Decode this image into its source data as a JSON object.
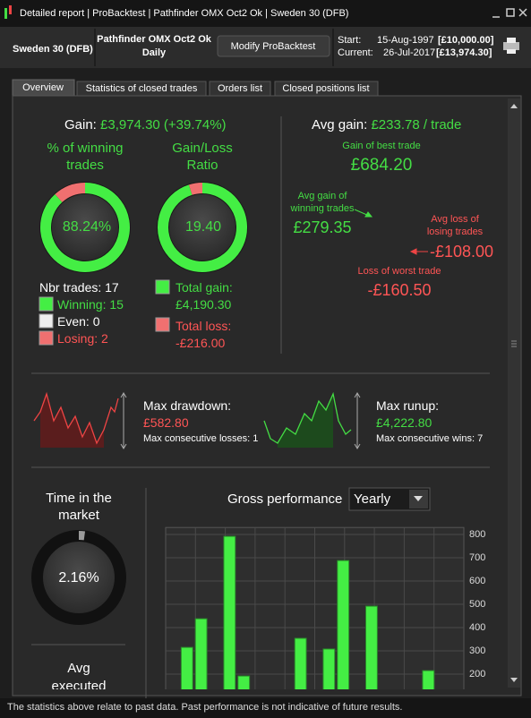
{
  "window": {
    "title": "Detailed report | ProBacktest | Pathfinder OMX Oct2 Ok | Sweden 30 (DFB)"
  },
  "header": {
    "instrument": "Sweden 30 (DFB)",
    "system": "Pathfinder OMX Oct2 Ok",
    "period": "Daily",
    "button": "Modify ProBacktest",
    "start_label": "Start:",
    "start_date": "15-Aug-1997",
    "start_capital": "[£10,000.00]",
    "current_label": "Current:",
    "current_date": "26-Jul-2017",
    "current_capital": "[£13,974.30]"
  },
  "tabs": [
    "Overview",
    "Statistics of closed trades",
    "Orders list",
    "Closed positions list"
  ],
  "gain": {
    "label": "Gain:",
    "value": "£3,974.30 (+39.74%)"
  },
  "winning": {
    "title": "% of winning trades",
    "pct": {
      "value": 88.24,
      "label": "88.24%"
    }
  },
  "ratio": {
    "title": "Gain/Loss Ratio",
    "value": {
      "value": 19.4,
      "label": "19.40"
    }
  },
  "trades": {
    "total_label": "Nbr trades:",
    "total": 17,
    "winning_label": "Winning:",
    "winning": 15,
    "even_label": "Even:",
    "even": 0,
    "losing_label": "Losing:",
    "losing": 2
  },
  "totals": {
    "gain_label": "Total gain:",
    "gain": {
      "value": 4190.3,
      "label": "£4,190.30"
    },
    "loss_label": "Total loss:",
    "loss": {
      "value": -216,
      "label": "-£216.00"
    }
  },
  "avg_gain": {
    "label": "Avg gain:",
    "value": "£233.78 / trade",
    "best_label": "Gain of best trade",
    "best": {
      "value": 684.2,
      "label": "£684.20"
    },
    "avg_win_label": "Avg gain of winning trades",
    "avg_win": {
      "value": 279.35,
      "label": "£279.35"
    },
    "avg_loss_label": "Avg loss of losing trades",
    "avg_loss": {
      "value": -108,
      "label": "-£108.00"
    },
    "worst_label": "Loss of worst trade",
    "worst": {
      "value": -160.5,
      "label": "-£160.50"
    }
  },
  "drawdown": {
    "label": "Max drawdown:",
    "value": "£582.80",
    "consecutive": "Max consecutive losses: 1"
  },
  "runup": {
    "label": "Max runup:",
    "value": "£4,222.80",
    "consecutive": "Max consecutive wins: 7"
  },
  "time_in_market": {
    "title": "Time in the market",
    "pct": {
      "value": 2.16,
      "label": "2.16%"
    }
  },
  "avg_executed": {
    "title": "Avg executed"
  },
  "chart_data": {
    "type": "bar",
    "title": "Gross performance",
    "period": "Yearly",
    "categories": [
      null,
      null,
      null,
      null,
      null,
      null,
      null,
      null,
      null,
      null,
      null,
      null,
      null,
      null,
      null,
      null,
      null,
      null,
      null,
      null,
      null
    ],
    "values": [
      null,
      315,
      438,
      null,
      792,
      192,
      null,
      null,
      null,
      354,
      null,
      308,
      688,
      null,
      492,
      null,
      null,
      null,
      215,
      null,
      null
    ],
    "color": "#44ee44",
    "ylim": [
      0,
      830
    ],
    "yticks": [
      200,
      300,
      400,
      500,
      600,
      700,
      800
    ],
    "grid": true
  },
  "footer": "The statistics above relate to past data. Past performance is not indicative of future results."
}
